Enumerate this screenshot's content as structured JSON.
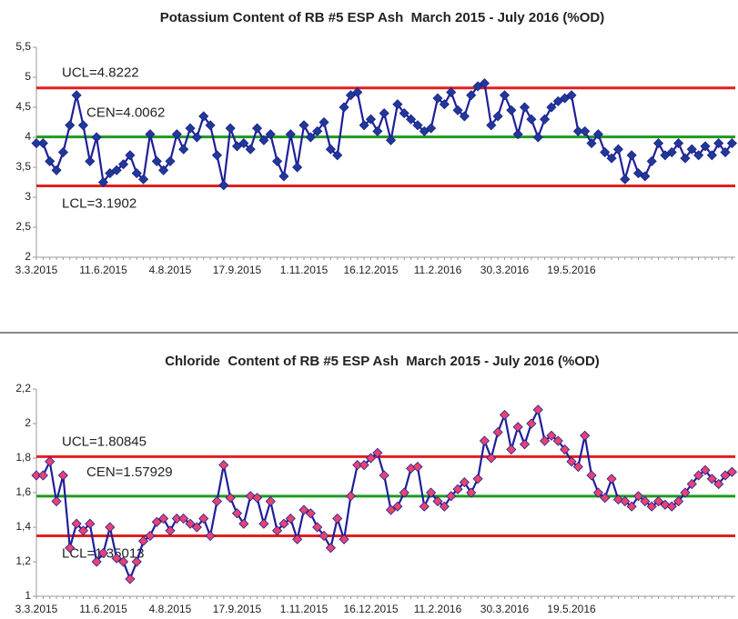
{
  "chart_data": [
    {
      "type": "line",
      "title": "Potassium Content of RB #5 ESP Ash  March 2015 - July 2016 (%OD)",
      "categories": [
        "3.3.2015",
        null,
        null,
        null,
        null,
        null,
        null,
        null,
        null,
        null,
        "11.6.2015",
        null,
        null,
        null,
        null,
        null,
        null,
        null,
        null,
        null,
        "4.8.2015",
        null,
        null,
        null,
        null,
        null,
        null,
        null,
        null,
        null,
        "17.9.2015",
        null,
        null,
        null,
        null,
        null,
        null,
        null,
        null,
        null,
        "1.11.2015",
        null,
        null,
        null,
        null,
        null,
        null,
        null,
        null,
        null,
        "16.12.2015",
        null,
        null,
        null,
        null,
        null,
        null,
        null,
        null,
        null,
        "11.2.2016",
        null,
        null,
        null,
        null,
        null,
        null,
        null,
        null,
        null,
        "30.3.2016",
        null,
        null,
        null,
        null,
        null,
        null,
        null,
        null,
        null,
        "19.5.2016",
        null,
        null,
        null,
        null,
        null,
        null,
        null,
        null,
        null,
        null,
        null,
        null,
        null,
        null,
        null,
        null,
        null,
        null,
        null,
        null,
        null,
        null,
        null,
        null
      ],
      "values": [
        3.9,
        3.9,
        3.6,
        3.45,
        3.75,
        4.2,
        4.7,
        4.2,
        3.6,
        4.0,
        3.25,
        3.4,
        3.45,
        3.55,
        3.7,
        3.4,
        3.3,
        4.05,
        3.6,
        3.45,
        3.6,
        4.05,
        3.8,
        4.15,
        4.0,
        4.35,
        4.2,
        3.7,
        3.2,
        4.15,
        3.85,
        3.9,
        3.8,
        4.15,
        3.95,
        4.05,
        3.6,
        3.35,
        4.05,
        3.5,
        4.2,
        4.0,
        4.1,
        4.25,
        3.8,
        3.7,
        4.5,
        4.7,
        4.75,
        4.2,
        4.3,
        4.1,
        4.4,
        3.95,
        4.55,
        4.4,
        4.3,
        4.2,
        4.1,
        4.15,
        4.65,
        4.55,
        4.75,
        4.45,
        4.35,
        4.7,
        4.85,
        4.9,
        4.2,
        4.35,
        4.7,
        4.45,
        4.05,
        4.5,
        4.3,
        4.0,
        4.3,
        4.5,
        4.6,
        4.65,
        4.7,
        4.1,
        4.1,
        3.9,
        4.05,
        3.75,
        3.65,
        3.8,
        3.3,
        3.7,
        3.4,
        3.35,
        3.6,
        3.9,
        3.7,
        3.75,
        3.9,
        3.65,
        3.8,
        3.7,
        3.85,
        3.7,
        3.9,
        3.75,
        3.9
      ],
      "line_color": "#1f1f99",
      "marker_color": "#1f3a93",
      "limits": [
        {
          "label": "UCL=4.8222",
          "value": 4.8222,
          "color": "#e41e1e"
        },
        {
          "label": "CEN=4.0062",
          "value": 4.0062,
          "color": "#1e9a1e"
        },
        {
          "label": "LCL=3.1902",
          "value": 3.1902,
          "color": "#e41e1e"
        }
      ],
      "ylim": [
        2,
        5.5
      ],
      "yticks": [
        2,
        {
          "value": 2.5,
          "label": "2,5"
        },
        3,
        {
          "value": 3.5,
          "label": "3,5"
        },
        4,
        {
          "value": 4.5,
          "label": "4,5"
        },
        5,
        {
          "value": 5.5,
          "label": "5,5"
        }
      ],
      "grid": false
    },
    {
      "type": "line",
      "title": "Chloride  Content of RB #5 ESP Ash  March 2015 - July 2016 (%OD)",
      "categories": [
        "3.3.2015",
        null,
        null,
        null,
        null,
        null,
        null,
        null,
        null,
        null,
        "11.6.2015",
        null,
        null,
        null,
        null,
        null,
        null,
        null,
        null,
        null,
        "4.8.2015",
        null,
        null,
        null,
        null,
        null,
        null,
        null,
        null,
        null,
        "17.9.2015",
        null,
        null,
        null,
        null,
        null,
        null,
        null,
        null,
        null,
        "1.11.2015",
        null,
        null,
        null,
        null,
        null,
        null,
        null,
        null,
        null,
        "16.12.2015",
        null,
        null,
        null,
        null,
        null,
        null,
        null,
        null,
        null,
        "11.2.2016",
        null,
        null,
        null,
        null,
        null,
        null,
        null,
        null,
        null,
        "30.3.2016",
        null,
        null,
        null,
        null,
        null,
        null,
        null,
        null,
        null,
        "19.5.2016",
        null,
        null,
        null,
        null,
        null,
        null,
        null,
        null,
        null,
        null,
        null,
        null,
        null,
        null,
        null,
        null,
        null,
        null,
        null,
        null,
        null,
        null,
        null,
        null
      ],
      "values": [
        1.7,
        1.7,
        1.78,
        1.55,
        1.7,
        1.28,
        1.42,
        1.38,
        1.42,
        1.2,
        1.25,
        1.4,
        1.22,
        1.2,
        1.1,
        1.2,
        1.32,
        1.35,
        1.43,
        1.45,
        1.38,
        1.45,
        1.45,
        1.42,
        1.4,
        1.45,
        1.35,
        1.55,
        1.76,
        1.57,
        1.48,
        1.42,
        1.58,
        1.57,
        1.42,
        1.55,
        1.38,
        1.42,
        1.45,
        1.33,
        1.5,
        1.48,
        1.4,
        1.35,
        1.28,
        1.45,
        1.33,
        1.58,
        1.76,
        1.76,
        1.8,
        1.83,
        1.7,
        1.5,
        1.52,
        1.6,
        1.74,
        1.75,
        1.52,
        1.6,
        1.55,
        1.52,
        1.58,
        1.62,
        1.66,
        1.6,
        1.68,
        1.9,
        1.8,
        1.95,
        2.05,
        1.85,
        1.98,
        1.88,
        2.0,
        2.08,
        1.9,
        1.93,
        1.9,
        1.85,
        1.78,
        1.75,
        1.93,
        1.7,
        1.6,
        1.57,
        1.68,
        1.56,
        1.55,
        1.52,
        1.58,
        1.55,
        1.52,
        1.55,
        1.53,
        1.52,
        1.55,
        1.6,
        1.65,
        1.7,
        1.73,
        1.68,
        1.65,
        1.7,
        1.72
      ],
      "line_color": "#1f1f99",
      "marker_color": "#e8436e",
      "limits": [
        {
          "label": "UCL=1.80845",
          "value": 1.80845,
          "color": "#e41e1e"
        },
        {
          "label": "CEN=1.57929",
          "value": 1.57929,
          "color": "#1e9a1e"
        },
        {
          "label": "LCL=1.35013",
          "value": 1.35013,
          "color": "#e41e1e"
        }
      ],
      "ylim": [
        1,
        2.2
      ],
      "yticks": [
        1,
        {
          "value": 1.2,
          "label": "1,2"
        },
        {
          "value": 1.4,
          "label": "1,4"
        },
        {
          "value": 1.6,
          "label": "1,6"
        },
        {
          "value": 1.8,
          "label": "1,8"
        },
        2,
        {
          "value": 2.2,
          "label": "2,2"
        }
      ],
      "grid": false
    }
  ]
}
